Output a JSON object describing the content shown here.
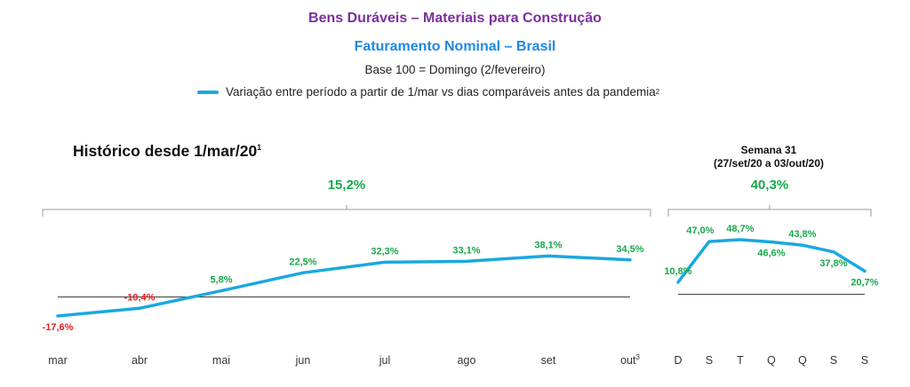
{
  "header": {
    "title": "Bens Duráveis – Materiais para Construção",
    "subtitle": "Faturamento Nominal – Brasil",
    "base": "Base 100 = Domingo (2/fevereiro)",
    "legend_label": "Variação entre período a partir de 1/mar vs dias comparáveis antes da pandemia",
    "legend_sup": "2"
  },
  "colors": {
    "title": "#7b2fa0",
    "subtitle": "#1e88e5",
    "line": "#1aa8e0",
    "positive": "#17a84b",
    "negative": "#e02020"
  },
  "chart_data": [
    {
      "type": "line",
      "title": "Histórico desde 1/mar/20",
      "title_sup": "1",
      "summary": "15,2%",
      "categories": [
        "mar",
        "abr",
        "mai",
        "jun",
        "jul",
        "ago",
        "set",
        "out"
      ],
      "category_sups": [
        "",
        "",
        "",
        "",
        "",
        "",
        "",
        "3"
      ],
      "values": [
        -17.6,
        -10.4,
        5.8,
        22.5,
        32.3,
        33.1,
        38.1,
        34.5
      ],
      "labels": [
        "-17,6%",
        "-10,4%",
        "5,8%",
        "22,5%",
        "32,3%",
        "33,1%",
        "38,1%",
        "34,5%"
      ],
      "ylim": [
        -25,
        45
      ],
      "baseline": 0
    },
    {
      "type": "line",
      "title": "Semana 31",
      "subtitle": "(27/set/20 a 03/out/20)",
      "summary": "40,3%",
      "categories": [
        "D",
        "S",
        "T",
        "Q",
        "Q",
        "S",
        "S"
      ],
      "values": [
        10.8,
        47.0,
        48.7,
        46.6,
        43.8,
        37.8,
        20.7
      ],
      "labels": [
        "10,8%",
        "47,0%",
        "48,7%",
        "46,6%",
        "43,8%",
        "37,8%",
        "20,7%"
      ],
      "ylim": [
        -5,
        55
      ],
      "baseline": 0
    }
  ]
}
